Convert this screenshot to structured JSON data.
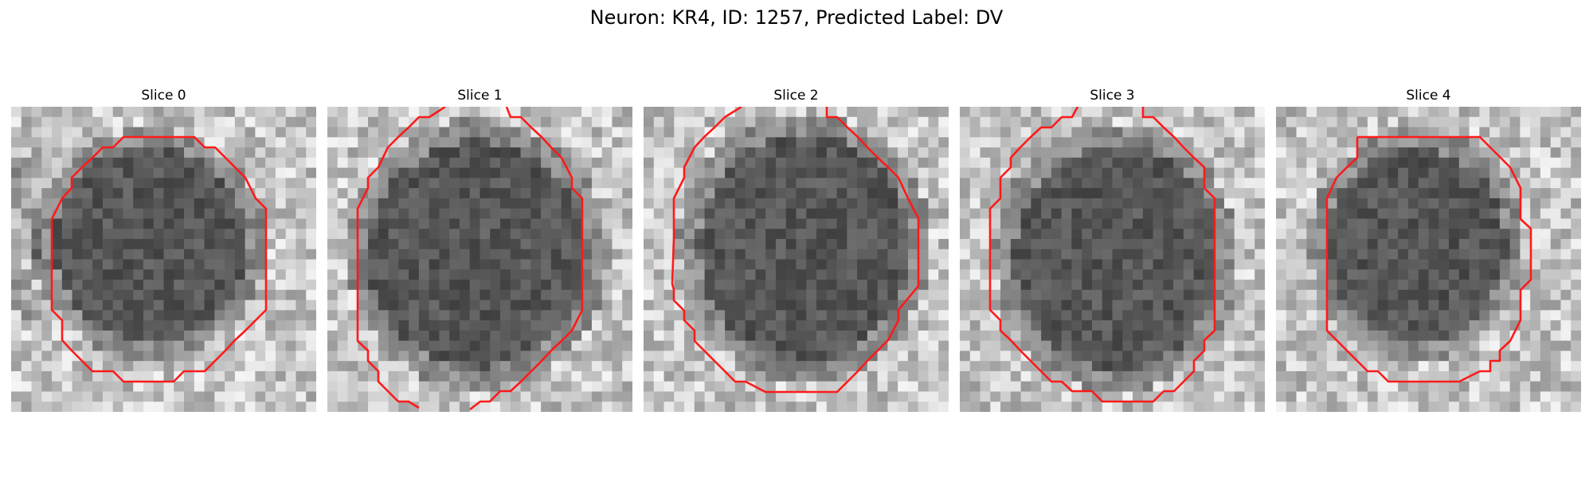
{
  "figure": {
    "title": "Neuron: KR4, ID: 1257, Predicted Label: DV"
  },
  "slices": [
    {
      "title": "Slice 0"
    },
    {
      "title": "Slice 1"
    },
    {
      "title": "Slice 2"
    },
    {
      "title": "Slice 3"
    },
    {
      "title": "Slice 4"
    }
  ],
  "style": {
    "contour_color": "#ff1a1a",
    "image_colormap": "grayscale"
  }
}
